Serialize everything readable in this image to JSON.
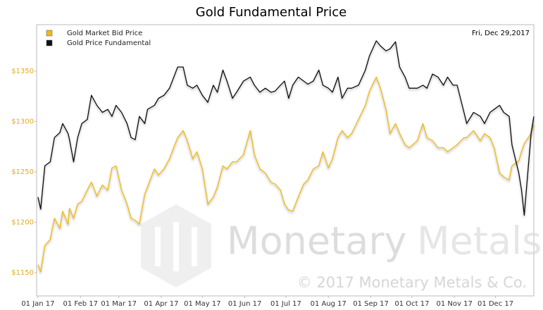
{
  "chart_data": {
    "type": "line",
    "title": "Gold Fundamental Price",
    "annotation": "Fri, Dec 29,2017",
    "watermark": {
      "brand": [
        "Monetary",
        "Metals"
      ],
      "copyright": "© 2017 Monetary Metals & Co."
    },
    "legend": "top-left",
    "grid": false,
    "xlim": [
      "2016-12-31",
      "2017-12-29"
    ],
    "ylim": [
      1127,
      1396
    ],
    "yticks": [
      {
        "value": 1150,
        "label": "$1150"
      },
      {
        "value": 1200,
        "label": "$1200"
      },
      {
        "value": 1250,
        "label": "$1250"
      },
      {
        "value": 1300,
        "label": "$1300"
      },
      {
        "value": 1350,
        "label": "$1350"
      }
    ],
    "xticks": [
      {
        "value": "2017-01-01",
        "label": "01 Jan 17"
      },
      {
        "value": "2017-02-01",
        "label": "01 Feb 17"
      },
      {
        "value": "2017-03-01",
        "label": "01 Mar 17"
      },
      {
        "value": "2017-04-01",
        "label": "01 Apr 17"
      },
      {
        "value": "2017-05-01",
        "label": "01 May 17"
      },
      {
        "value": "2017-06-01",
        "label": "01 Jun 17"
      },
      {
        "value": "2017-07-01",
        "label": "01 Jul 17"
      },
      {
        "value": "2017-08-01",
        "label": "01 Aug 17"
      },
      {
        "value": "2017-09-01",
        "label": "01 Sep 17"
      },
      {
        "value": "2017-10-01",
        "label": "01 Oct 17"
      },
      {
        "value": "2017-11-01",
        "label": "01 Nov 17"
      },
      {
        "value": "2017-12-01",
        "label": "01 Dec 17"
      }
    ],
    "x": [
      "2017-01-01",
      "2017-01-03",
      "2017-01-06",
      "2017-01-10",
      "2017-01-13",
      "2017-01-17",
      "2017-01-19",
      "2017-01-23",
      "2017-01-24",
      "2017-01-27",
      "2017-01-30",
      "2017-02-02",
      "2017-02-06",
      "2017-02-09",
      "2017-02-13",
      "2017-02-17",
      "2017-02-21",
      "2017-02-24",
      "2017-02-27",
      "2017-03-03",
      "2017-03-07",
      "2017-03-10",
      "2017-03-13",
      "2017-03-16",
      "2017-03-20",
      "2017-03-22",
      "2017-03-27",
      "2017-03-30",
      "2017-04-03",
      "2017-04-07",
      "2017-04-13",
      "2017-04-17",
      "2017-04-20",
      "2017-04-24",
      "2017-04-27",
      "2017-05-01",
      "2017-05-05",
      "2017-05-09",
      "2017-05-12",
      "2017-05-16",
      "2017-05-19",
      "2017-05-23",
      "2017-05-26",
      "2017-05-31",
      "2017-06-05",
      "2017-06-08",
      "2017-06-12",
      "2017-06-16",
      "2017-06-20",
      "2017-06-23",
      "2017-06-27",
      "2017-06-30",
      "2017-07-03",
      "2017-07-06",
      "2017-07-10",
      "2017-07-14",
      "2017-07-17",
      "2017-07-21",
      "2017-07-25",
      "2017-07-28",
      "2017-08-01",
      "2017-08-04",
      "2017-08-08",
      "2017-08-11",
      "2017-08-15",
      "2017-08-18",
      "2017-08-23",
      "2017-08-28",
      "2017-08-31",
      "2017-09-05",
      "2017-09-08",
      "2017-09-12",
      "2017-09-15",
      "2017-09-19",
      "2017-09-22",
      "2017-09-26",
      "2017-09-29",
      "2017-10-05",
      "2017-10-09",
      "2017-10-12",
      "2017-10-16",
      "2017-10-20",
      "2017-10-24",
      "2017-10-27",
      "2017-10-31",
      "2017-11-03",
      "2017-11-08",
      "2017-11-10",
      "2017-11-15",
      "2017-11-20",
      "2017-11-23",
      "2017-11-27",
      "2017-11-30",
      "2017-12-04",
      "2017-12-07",
      "2017-12-11",
      "2017-12-13",
      "2017-12-18",
      "2017-12-20",
      "2017-12-22",
      "2017-12-27",
      "2017-12-29"
    ],
    "series": [
      {
        "name": "Gold Market Bid Price",
        "color": "#f2b90f",
        "values": [
          1158,
          1151,
          1177,
          1183,
          1204,
          1194,
          1211,
          1198,
          1214,
          1204,
          1218,
          1221,
          1232,
          1240,
          1226,
          1237,
          1232,
          1254,
          1256,
          1232,
          1218,
          1204,
          1202,
          1198,
          1228,
          1235,
          1253,
          1247,
          1253,
          1263,
          1284,
          1291,
          1281,
          1263,
          1270,
          1253,
          1218,
          1225,
          1235,
          1256,
          1253,
          1260,
          1260,
          1267,
          1291,
          1267,
          1253,
          1249,
          1240,
          1238,
          1232,
          1218,
          1212,
          1211,
          1225,
          1238,
          1242,
          1253,
          1256,
          1270,
          1254,
          1263,
          1284,
          1291,
          1284,
          1288,
          1302,
          1316,
          1330,
          1344,
          1333,
          1312,
          1288,
          1298,
          1288,
          1277,
          1274,
          1281,
          1298,
          1284,
          1281,
          1274,
          1274,
          1270,
          1274,
          1277,
          1284,
          1284,
          1291,
          1281,
          1288,
          1284,
          1274,
          1249,
          1245,
          1242,
          1256,
          1261,
          1270,
          1278,
          1288,
          1298
        ]
      },
      {
        "name": "Gold Price Fundamental",
        "color": "#111111",
        "values": [
          1225,
          1213,
          1256,
          1260,
          1284,
          1289,
          1298,
          1288,
          1282,
          1260,
          1284,
          1298,
          1302,
          1326,
          1316,
          1309,
          1312,
          1305,
          1316,
          1309,
          1298,
          1284,
          1282,
          1305,
          1298,
          1312,
          1316,
          1323,
          1326,
          1333,
          1354,
          1354,
          1336,
          1333,
          1336,
          1326,
          1319,
          1336,
          1329,
          1351,
          1340,
          1323,
          1329,
          1340,
          1344,
          1336,
          1329,
          1333,
          1329,
          1330,
          1336,
          1340,
          1323,
          1336,
          1344,
          1340,
          1337,
          1340,
          1351,
          1336,
          1333,
          1329,
          1344,
          1323,
          1333,
          1333,
          1336,
          1351,
          1365,
          1380,
          1375,
          1370,
          1372,
          1379,
          1354,
          1344,
          1333,
          1333,
          1336,
          1333,
          1347,
          1344,
          1336,
          1344,
          1336,
          1336,
          1309,
          1298,
          1309,
          1305,
          1298,
          1309,
          1312,
          1316,
          1309,
          1305,
          1277,
          1249,
          1232,
          1207,
          1288,
          1305
        ]
      }
    ]
  }
}
